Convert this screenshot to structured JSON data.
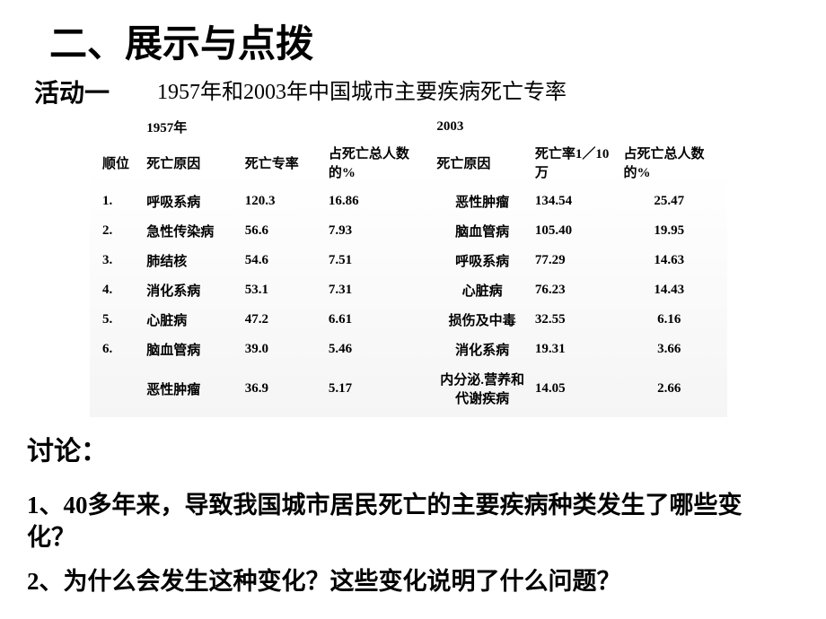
{
  "main_title": "二、展示与点拨",
  "activity_label": "活动一",
  "table_title": "1957年和2003年中国城市主要疾病死亡专率",
  "discuss_label": "讨论：",
  "question1": "1、40多年来，导致我国城市居民死亡的主要疾病种类发生了哪些变化？",
  "question2": "2、为什么会发生这种变化？这些变化说明了什么问题？",
  "table": {
    "year1": "1957年",
    "year2": "2003",
    "headers": {
      "rank": "顺位",
      "cause1": "死亡原因",
      "rate1": "死亡专率",
      "pct1": "占死亡总人数的%",
      "cause2": "死亡原因",
      "rate2": "死亡率1／10万",
      "pct2": "占死亡总人数的%"
    },
    "rows": [
      {
        "rank": "1.",
        "cause1": "呼吸系病",
        "rate1": "120.3",
        "pct1": "16.86",
        "cause2": "恶性肿瘤",
        "rate2": "134.54",
        "pct2": "25.47"
      },
      {
        "rank": "2.",
        "cause1": "急性传染病",
        "rate1": "56.6",
        "pct1": "7.93",
        "cause2": "脑血管病",
        "rate2": "105.40",
        "pct2": "19.95"
      },
      {
        "rank": "3.",
        "cause1": "肺结核",
        "rate1": "54.6",
        "pct1": "7.51",
        "cause2": "呼吸系病",
        "rate2": "77.29",
        "pct2": "14.63"
      },
      {
        "rank": "4.",
        "cause1": "消化系病",
        "rate1": "53.1",
        "pct1": "7.31",
        "cause2": "心脏病",
        "rate2": "76.23",
        "pct2": "14.43"
      },
      {
        "rank": "5.",
        "cause1": "心脏病",
        "rate1": "47.2",
        "pct1": "6.61",
        "cause2": "损伤及中毒",
        "rate2": "32.55",
        "pct2": "6.16"
      },
      {
        "rank": "6.",
        "cause1": "脑血管病",
        "rate1": "39.0",
        "pct1": "5.46",
        "cause2": "消化系病",
        "rate2": "19.31",
        "pct2": "3.66"
      },
      {
        "rank": "",
        "cause1": "恶性肿瘤",
        "rate1": "36.9",
        "pct1": "5.17",
        "cause2": "内分泌.营养和代谢疾病",
        "rate2": "14.05",
        "pct2": "2.66"
      }
    ]
  }
}
